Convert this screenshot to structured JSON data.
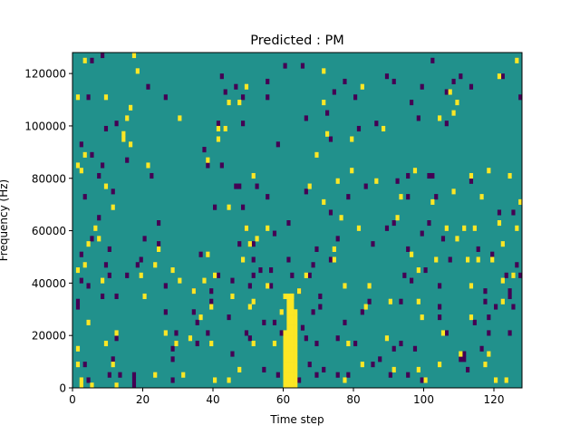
{
  "chart_data": {
    "type": "heatmap",
    "title": "Predicted : PM",
    "xlabel": "Time step",
    "ylabel": "Frequency (Hz)",
    "xlim": [
      0,
      128
    ],
    "ylim": [
      0,
      128000
    ],
    "x_ticks": [
      0,
      20,
      40,
      60,
      80,
      100,
      120
    ],
    "y_ticks": [
      0,
      20000,
      40000,
      60000,
      80000,
      100000,
      120000
    ],
    "grid": false,
    "legend": "none",
    "colormap": "viridis",
    "cell_colors": {
      "background": "#21918c",
      "low": "#440154",
      "high": "#fde725"
    },
    "low_cells": [
      [
        1,
        30000
      ],
      [
        1,
        32000
      ],
      [
        2,
        92000
      ],
      [
        2,
        50000
      ],
      [
        2,
        40000
      ],
      [
        3,
        8000
      ],
      [
        3,
        72000
      ],
      [
        4,
        2000
      ],
      [
        4,
        38000
      ],
      [
        4,
        110000
      ],
      [
        5,
        124000
      ],
      [
        5,
        56000
      ],
      [
        5,
        88000
      ],
      [
        7,
        64000
      ],
      [
        7,
        80000
      ],
      [
        8,
        84000
      ],
      [
        8,
        34000
      ],
      [
        8,
        126000
      ],
      [
        9,
        98000
      ],
      [
        9,
        46000
      ],
      [
        10,
        42000
      ],
      [
        10,
        52000
      ],
      [
        10,
        4000
      ],
      [
        11,
        74000
      ],
      [
        11,
        10000
      ],
      [
        12,
        100000
      ],
      [
        12,
        18000
      ],
      [
        12,
        34000
      ],
      [
        13,
        4000
      ],
      [
        15,
        42000
      ],
      [
        15,
        86000
      ],
      [
        17,
        4000
      ],
      [
        17,
        2000
      ],
      [
        17,
        0
      ],
      [
        18,
        46000
      ],
      [
        19,
        48000
      ],
      [
        20,
        56000
      ],
      [
        21,
        114000
      ],
      [
        22,
        80000
      ],
      [
        24,
        62000
      ],
      [
        24,
        54000
      ],
      [
        26,
        110000
      ],
      [
        26,
        28000
      ],
      [
        26,
        38000
      ],
      [
        28,
        14000
      ],
      [
        28,
        2000
      ],
      [
        28,
        10000
      ],
      [
        29,
        20000
      ],
      [
        29,
        16000
      ],
      [
        34,
        28000
      ],
      [
        34,
        36000
      ],
      [
        35,
        16000
      ],
      [
        35,
        24000
      ],
      [
        36,
        50000
      ],
      [
        37,
        90000
      ],
      [
        38,
        84000
      ],
      [
        38,
        20000
      ],
      [
        39,
        32000
      ],
      [
        39,
        36000
      ],
      [
        40,
        68000
      ],
      [
        41,
        100000
      ],
      [
        41,
        42000
      ],
      [
        42,
        118000
      ],
      [
        42,
        84000
      ],
      [
        43,
        112000
      ],
      [
        44,
        26000
      ],
      [
        45,
        12000
      ],
      [
        46,
        114000
      ],
      [
        45,
        40000
      ],
      [
        46,
        76000
      ],
      [
        47,
        76000
      ],
      [
        47,
        54000
      ],
      [
        48,
        110000
      ],
      [
        48,
        68000
      ],
      [
        48,
        100000
      ],
      [
        49,
        60000
      ],
      [
        49,
        20000
      ],
      [
        50,
        18000
      ],
      [
        50,
        38000
      ],
      [
        51,
        54000
      ],
      [
        51,
        42000
      ],
      [
        51,
        48000
      ],
      [
        52,
        76000
      ],
      [
        53,
        44000
      ],
      [
        54,
        6000
      ],
      [
        55,
        72000
      ],
      [
        54,
        24000
      ],
      [
        55,
        110000
      ],
      [
        55,
        116000
      ],
      [
        56,
        44000
      ],
      [
        56,
        38000
      ],
      [
        58,
        4000
      ],
      [
        58,
        92000
      ],
      [
        57,
        58000
      ],
      [
        57,
        24000
      ],
      [
        59,
        20000
      ],
      [
        60,
        122000
      ],
      [
        61,
        48000
      ],
      [
        61,
        62000
      ],
      [
        62,
        42000
      ],
      [
        64,
        36000
      ],
      [
        64,
        2000
      ],
      [
        65,
        22000
      ],
      [
        65,
        122000
      ],
      [
        66,
        74000
      ],
      [
        66,
        102000
      ],
      [
        66,
        18000
      ],
      [
        67,
        42000
      ],
      [
        67,
        8000
      ],
      [
        68,
        46000
      ],
      [
        68,
        28000
      ],
      [
        69,
        16000
      ],
      [
        69,
        4000
      ],
      [
        69,
        52000
      ],
      [
        70,
        30000
      ],
      [
        70,
        34000
      ],
      [
        71,
        6000
      ],
      [
        72,
        104000
      ],
      [
        73,
        94000
      ],
      [
        73,
        66000
      ],
      [
        73,
        48000
      ],
      [
        74,
        112000
      ],
      [
        75,
        18000
      ],
      [
        75,
        4000
      ],
      [
        75,
        56000
      ],
      [
        77,
        24000
      ],
      [
        77,
        116000
      ],
      [
        78,
        72000
      ],
      [
        78,
        4000
      ],
      [
        80,
        16000
      ],
      [
        80,
        110000
      ],
      [
        81,
        98000
      ],
      [
        82,
        28000
      ],
      [
        83,
        76000
      ],
      [
        84,
        32000
      ],
      [
        85,
        8000
      ],
      [
        85,
        54000
      ],
      [
        86,
        100000
      ],
      [
        87,
        10000
      ],
      [
        89,
        60000
      ],
      [
        89,
        118000
      ],
      [
        90,
        4000
      ],
      [
        91,
        14000
      ],
      [
        91,
        62000
      ],
      [
        91,
        116000
      ],
      [
        92,
        78000
      ],
      [
        93,
        32000
      ],
      [
        93,
        16000
      ],
      [
        94,
        42000
      ],
      [
        95,
        52000
      ],
      [
        95,
        72000
      ],
      [
        95,
        80000
      ],
      [
        95,
        4000
      ],
      [
        96,
        40000
      ],
      [
        96,
        108000
      ],
      [
        97,
        14000
      ],
      [
        98,
        102000
      ],
      [
        99,
        58000
      ],
      [
        99,
        114000
      ],
      [
        99,
        2000
      ],
      [
        100,
        44000
      ],
      [
        101,
        80000
      ],
      [
        101,
        62000
      ],
      [
        102,
        80000
      ],
      [
        102,
        124000
      ],
      [
        103,
        72000
      ],
      [
        104,
        38000
      ],
      [
        104,
        30000
      ],
      [
        104,
        26000
      ],
      [
        105,
        56000
      ],
      [
        106,
        100000
      ],
      [
        106,
        112000
      ],
      [
        106,
        20000
      ],
      [
        107,
        48000
      ],
      [
        108,
        116000
      ],
      [
        110,
        118000
      ],
      [
        110,
        10000
      ],
      [
        111,
        10000
      ],
      [
        111,
        12000
      ],
      [
        112,
        6000
      ],
      [
        113,
        78000
      ],
      [
        113,
        114000
      ],
      [
        114,
        24000
      ],
      [
        115,
        52000
      ],
      [
        116,
        14000
      ],
      [
        117,
        36000
      ],
      [
        117,
        32000
      ],
      [
        118,
        20000
      ],
      [
        118,
        26000
      ],
      [
        119,
        50000
      ],
      [
        120,
        30000
      ],
      [
        121,
        66000
      ],
      [
        122,
        118000
      ],
      [
        123,
        42000
      ],
      [
        124,
        20000
      ],
      [
        124,
        34000
      ],
      [
        124,
        36000
      ],
      [
        125,
        66000
      ],
      [
        125,
        30000
      ],
      [
        126,
        46000
      ],
      [
        127,
        42000
      ],
      [
        127,
        110000
      ]
    ],
    "high_cells": [
      [
        1,
        44000
      ],
      [
        1,
        110000
      ],
      [
        1,
        8000
      ],
      [
        1,
        14000
      ],
      [
        1,
        84000
      ],
      [
        2,
        0
      ],
      [
        2,
        2000
      ],
      [
        2,
        82000
      ],
      [
        3,
        46000
      ],
      [
        3,
        88000
      ],
      [
        3,
        124000
      ],
      [
        4,
        54000
      ],
      [
        4,
        24000
      ],
      [
        5,
        0
      ],
      [
        6,
        60000
      ],
      [
        7,
        56000
      ],
      [
        8,
        40000
      ],
      [
        9,
        76000
      ],
      [
        9,
        16000
      ],
      [
        9,
        110000
      ],
      [
        11,
        68000
      ],
      [
        11,
        8000
      ],
      [
        12,
        0
      ],
      [
        12,
        20000
      ],
      [
        14,
        96000
      ],
      [
        14,
        94000
      ],
      [
        15,
        102000
      ],
      [
        16,
        92000
      ],
      [
        16,
        106000
      ],
      [
        17,
        126000
      ],
      [
        18,
        120000
      ],
      [
        19,
        42000
      ],
      [
        20,
        34000
      ],
      [
        21,
        84000
      ],
      [
        23,
        4000
      ],
      [
        23,
        46000
      ],
      [
        24,
        52000
      ],
      [
        26,
        20000
      ],
      [
        28,
        44000
      ],
      [
        29,
        16000
      ],
      [
        30,
        102000
      ],
      [
        30,
        40000
      ],
      [
        31,
        4000
      ],
      [
        33,
        18000
      ],
      [
        34,
        36000
      ],
      [
        36,
        26000
      ],
      [
        37,
        40000
      ],
      [
        38,
        50000
      ],
      [
        38,
        86000
      ],
      [
        39,
        16000
      ],
      [
        39,
        30000
      ],
      [
        40,
        42000
      ],
      [
        40,
        2000
      ],
      [
        41,
        94000
      ],
      [
        41,
        98000
      ],
      [
        43,
        98000
      ],
      [
        44,
        108000
      ],
      [
        44,
        2000
      ],
      [
        44,
        68000
      ],
      [
        45,
        34000
      ],
      [
        47,
        6000
      ],
      [
        47,
        108000
      ],
      [
        48,
        48000
      ],
      [
        49,
        60000
      ],
      [
        49,
        114000
      ],
      [
        50,
        30000
      ],
      [
        50,
        54000
      ],
      [
        51,
        32000
      ],
      [
        51,
        80000
      ],
      [
        51,
        16000
      ],
      [
        52,
        56000
      ],
      [
        55,
        60000
      ],
      [
        55,
        38000
      ],
      [
        57,
        16000
      ],
      [
        59,
        28000
      ],
      [
        60,
        34000
      ],
      [
        62,
        34000
      ],
      [
        64,
        36000
      ],
      [
        66,
        42000
      ],
      [
        67,
        76000
      ],
      [
        69,
        88000
      ],
      [
        71,
        70000
      ],
      [
        71,
        108000
      ],
      [
        71,
        120000
      ],
      [
        72,
        96000
      ],
      [
        74,
        48000
      ],
      [
        74,
        52000
      ],
      [
        75,
        78000
      ],
      [
        76,
        64000
      ],
      [
        77,
        38000
      ],
      [
        77,
        2000
      ],
      [
        78,
        16000
      ],
      [
        79,
        82000
      ],
      [
        79,
        94000
      ],
      [
        81,
        60000
      ],
      [
        82,
        114000
      ],
      [
        82,
        8000
      ],
      [
        83,
        30000
      ],
      [
        84,
        38000
      ],
      [
        86,
        78000
      ],
      [
        88,
        98000
      ],
      [
        89,
        18000
      ],
      [
        90,
        32000
      ],
      [
        91,
        6000
      ],
      [
        92,
        64000
      ],
      [
        93,
        72000
      ],
      [
        96,
        50000
      ],
      [
        97,
        82000
      ],
      [
        98,
        44000
      ],
      [
        98,
        32000
      ],
      [
        98,
        6000
      ],
      [
        99,
        26000
      ],
      [
        100,
        2000
      ],
      [
        102,
        70000
      ],
      [
        103,
        48000
      ],
      [
        104,
        8000
      ],
      [
        104,
        102000
      ],
      [
        105,
        20000
      ],
      [
        106,
        60000
      ],
      [
        107,
        112000
      ],
      [
        108,
        74000
      ],
      [
        108,
        104000
      ],
      [
        109,
        108000
      ],
      [
        109,
        56000
      ],
      [
        110,
        12000
      ],
      [
        111,
        60000
      ],
      [
        112,
        48000
      ],
      [
        113,
        26000
      ],
      [
        113,
        38000
      ],
      [
        113,
        80000
      ],
      [
        114,
        60000
      ],
      [
        115,
        48000
      ],
      [
        116,
        72000
      ],
      [
        117,
        8000
      ],
      [
        118,
        82000
      ],
      [
        118,
        12000
      ],
      [
        119,
        48000
      ],
      [
        120,
        2000
      ],
      [
        121,
        62000
      ],
      [
        121,
        118000
      ],
      [
        122,
        40000
      ],
      [
        122,
        32000
      ],
      [
        122,
        54000
      ],
      [
        123,
        2000
      ],
      [
        124,
        80000
      ],
      [
        125,
        42000
      ],
      [
        126,
        60000
      ],
      [
        126,
        124000
      ],
      [
        127,
        70000
      ]
    ]
  }
}
